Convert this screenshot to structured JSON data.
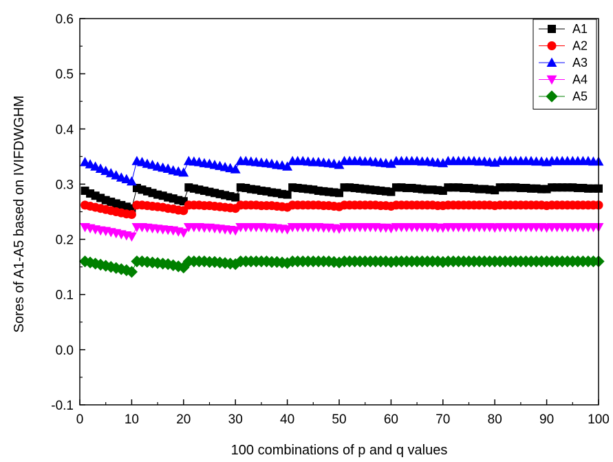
{
  "chart_data": {
    "type": "line",
    "title": "",
    "xlabel": "100 combinations of p and q values",
    "ylabel": "Sores of A1-A5 based on IVIFDWGHM",
    "xlim": [
      0,
      100
    ],
    "ylim": [
      -0.1,
      0.6
    ],
    "x_ticks": [
      "0",
      "10",
      "20",
      "30",
      "40",
      "50",
      "60",
      "70",
      "80",
      "90",
      "100"
    ],
    "y_ticks": [
      "-0.1",
      "0.0",
      "0.1",
      "0.2",
      "0.3",
      "0.4",
      "0.5",
      "0.6"
    ],
    "grid": false,
    "legend_position": "top-right",
    "series": [
      {
        "name": "A1",
        "color": "#000000",
        "marker": "square",
        "values": [
          0.288,
          0.283,
          0.279,
          0.275,
          0.271,
          0.268,
          0.265,
          0.262,
          0.259,
          0.256,
          0.293,
          0.29,
          0.287,
          0.284,
          0.281,
          0.279,
          0.276,
          0.274,
          0.271,
          0.269,
          0.294,
          0.292,
          0.29,
          0.288,
          0.286,
          0.284,
          0.282,
          0.28,
          0.278,
          0.276,
          0.294,
          0.293,
          0.291,
          0.29,
          0.288,
          0.287,
          0.285,
          0.284,
          0.282,
          0.281,
          0.294,
          0.293,
          0.292,
          0.291,
          0.29,
          0.288,
          0.287,
          0.286,
          0.285,
          0.284,
          0.294,
          0.294,
          0.293,
          0.292,
          0.291,
          0.29,
          0.289,
          0.288,
          0.287,
          0.286,
          0.294,
          0.294,
          0.293,
          0.293,
          0.292,
          0.291,
          0.29,
          0.29,
          0.289,
          0.288,
          0.294,
          0.294,
          0.294,
          0.293,
          0.293,
          0.292,
          0.291,
          0.291,
          0.29,
          0.289,
          0.294,
          0.294,
          0.294,
          0.294,
          0.293,
          0.293,
          0.292,
          0.292,
          0.291,
          0.291,
          0.294,
          0.294,
          0.294,
          0.294,
          0.294,
          0.293,
          0.293,
          0.292,
          0.292,
          0.292
        ]
      },
      {
        "name": "A2",
        "color": "#ff0000",
        "marker": "circle",
        "values": [
          0.262,
          0.26,
          0.258,
          0.256,
          0.254,
          0.252,
          0.25,
          0.248,
          0.246,
          0.245,
          0.262,
          0.262,
          0.261,
          0.26,
          0.259,
          0.258,
          0.256,
          0.255,
          0.253,
          0.252,
          0.262,
          0.262,
          0.262,
          0.261,
          0.261,
          0.26,
          0.259,
          0.258,
          0.257,
          0.256,
          0.262,
          0.262,
          0.262,
          0.262,
          0.261,
          0.261,
          0.261,
          0.26,
          0.259,
          0.258,
          0.262,
          0.262,
          0.262,
          0.262,
          0.262,
          0.262,
          0.261,
          0.261,
          0.26,
          0.259,
          0.262,
          0.262,
          0.262,
          0.262,
          0.262,
          0.262,
          0.262,
          0.261,
          0.261,
          0.26,
          0.262,
          0.262,
          0.262,
          0.262,
          0.262,
          0.262,
          0.262,
          0.262,
          0.261,
          0.261,
          0.262,
          0.262,
          0.262,
          0.262,
          0.262,
          0.262,
          0.262,
          0.262,
          0.262,
          0.261,
          0.262,
          0.262,
          0.262,
          0.262,
          0.262,
          0.262,
          0.262,
          0.262,
          0.262,
          0.261,
          0.262,
          0.262,
          0.262,
          0.262,
          0.262,
          0.262,
          0.262,
          0.262,
          0.262,
          0.262
        ]
      },
      {
        "name": "A3",
        "color": "#0000ff",
        "marker": "triangle-up",
        "values": [
          0.34,
          0.336,
          0.332,
          0.328,
          0.324,
          0.32,
          0.316,
          0.312,
          0.309,
          0.305,
          0.342,
          0.34,
          0.337,
          0.335,
          0.332,
          0.33,
          0.328,
          0.325,
          0.323,
          0.321,
          0.342,
          0.341,
          0.34,
          0.338,
          0.337,
          0.335,
          0.333,
          0.331,
          0.329,
          0.327,
          0.342,
          0.342,
          0.341,
          0.34,
          0.339,
          0.338,
          0.337,
          0.335,
          0.334,
          0.332,
          0.342,
          0.342,
          0.342,
          0.341,
          0.34,
          0.34,
          0.339,
          0.338,
          0.337,
          0.335,
          0.342,
          0.342,
          0.342,
          0.342,
          0.341,
          0.341,
          0.34,
          0.339,
          0.338,
          0.337,
          0.342,
          0.342,
          0.342,
          0.342,
          0.342,
          0.341,
          0.341,
          0.34,
          0.339,
          0.338,
          0.342,
          0.342,
          0.342,
          0.342,
          0.342,
          0.342,
          0.341,
          0.341,
          0.34,
          0.339,
          0.342,
          0.342,
          0.342,
          0.342,
          0.342,
          0.342,
          0.342,
          0.341,
          0.341,
          0.34,
          0.342,
          0.342,
          0.342,
          0.342,
          0.342,
          0.342,
          0.342,
          0.342,
          0.341,
          0.341
        ]
      },
      {
        "name": "A4",
        "color": "#ff00ff",
        "marker": "triangle-down",
        "values": [
          0.222,
          0.22,
          0.218,
          0.216,
          0.215,
          0.213,
          0.211,
          0.209,
          0.207,
          0.205,
          0.222,
          0.222,
          0.221,
          0.22,
          0.219,
          0.218,
          0.217,
          0.216,
          0.214,
          0.212,
          0.222,
          0.222,
          0.222,
          0.221,
          0.221,
          0.22,
          0.219,
          0.218,
          0.217,
          0.216,
          0.222,
          0.222,
          0.222,
          0.222,
          0.222,
          0.221,
          0.221,
          0.22,
          0.219,
          0.218,
          0.222,
          0.222,
          0.222,
          0.222,
          0.222,
          0.222,
          0.221,
          0.221,
          0.22,
          0.219,
          0.222,
          0.222,
          0.222,
          0.222,
          0.222,
          0.222,
          0.222,
          0.221,
          0.221,
          0.22,
          0.222,
          0.222,
          0.222,
          0.222,
          0.222,
          0.222,
          0.222,
          0.222,
          0.221,
          0.221,
          0.222,
          0.222,
          0.222,
          0.222,
          0.222,
          0.222,
          0.222,
          0.222,
          0.222,
          0.221,
          0.222,
          0.222,
          0.222,
          0.222,
          0.222,
          0.222,
          0.222,
          0.222,
          0.222,
          0.221,
          0.222,
          0.222,
          0.222,
          0.222,
          0.222,
          0.222,
          0.222,
          0.222,
          0.222,
          0.222
        ]
      },
      {
        "name": "A5",
        "color": "#008000",
        "marker": "diamond",
        "values": [
          0.16,
          0.158,
          0.156,
          0.154,
          0.152,
          0.15,
          0.148,
          0.146,
          0.144,
          0.141,
          0.16,
          0.16,
          0.159,
          0.158,
          0.157,
          0.156,
          0.155,
          0.153,
          0.151,
          0.149,
          0.16,
          0.16,
          0.16,
          0.16,
          0.159,
          0.159,
          0.158,
          0.157,
          0.156,
          0.155,
          0.16,
          0.16,
          0.16,
          0.16,
          0.16,
          0.16,
          0.159,
          0.159,
          0.158,
          0.157,
          0.16,
          0.16,
          0.16,
          0.16,
          0.16,
          0.16,
          0.16,
          0.16,
          0.159,
          0.158,
          0.16,
          0.16,
          0.16,
          0.16,
          0.16,
          0.16,
          0.16,
          0.16,
          0.16,
          0.159,
          0.16,
          0.16,
          0.16,
          0.16,
          0.16,
          0.16,
          0.16,
          0.16,
          0.16,
          0.159,
          0.16,
          0.16,
          0.16,
          0.16,
          0.16,
          0.16,
          0.16,
          0.16,
          0.16,
          0.16,
          0.16,
          0.16,
          0.16,
          0.16,
          0.16,
          0.16,
          0.16,
          0.16,
          0.16,
          0.16,
          0.16,
          0.16,
          0.16,
          0.16,
          0.16,
          0.16,
          0.16,
          0.16,
          0.16,
          0.16
        ]
      }
    ]
  }
}
